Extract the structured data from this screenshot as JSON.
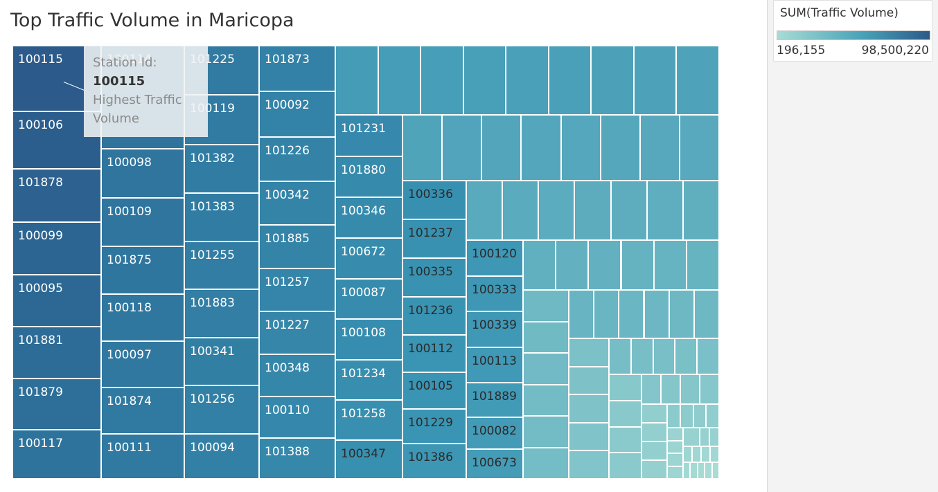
{
  "title": "Top Traffic Volume in Maricopa",
  "legend": {
    "title": "SUM(Traffic Volume)",
    "min_label": "196,155",
    "max_label": "98,500,220",
    "color_low": "#a8dcd5",
    "color_high": "#2c5a8a"
  },
  "tooltip": {
    "line1": "Station Id:",
    "value": "100115",
    "line3": "Highest Traffic",
    "line4": "Volume"
  },
  "chart_data": {
    "type": "treemap",
    "title": "Top Traffic Volume in Maricopa",
    "size_and_color_measure": "SUM(Traffic Volume)",
    "color_range": [
      196155,
      98500220
    ],
    "labeled_stations_largest_first": [
      "100115",
      "100106",
      "101878",
      "100099",
      "100095",
      "101881",
      "101879",
      "100117",
      "100114",
      "100098",
      "100109",
      "101875",
      "100118",
      "100097",
      "101874",
      "100111",
      "101225",
      "100119",
      "101382",
      "101383",
      "101255",
      "101883",
      "100341",
      "101256",
      "100094",
      "101873",
      "100092",
      "101226",
      "100342",
      "101885",
      "101257",
      "101227",
      "100348",
      "100110",
      "101388",
      "101231",
      "101880",
      "100346",
      "100672",
      "100087",
      "100108",
      "101234",
      "101258",
      "100347",
      "100336",
      "101237",
      "100335",
      "101236",
      "100112",
      "100105",
      "101229",
      "101386",
      "100120",
      "100333",
      "100339",
      "100113",
      "101889",
      "100082",
      "100673"
    ],
    "unlabeled_station_count": 121
  }
}
